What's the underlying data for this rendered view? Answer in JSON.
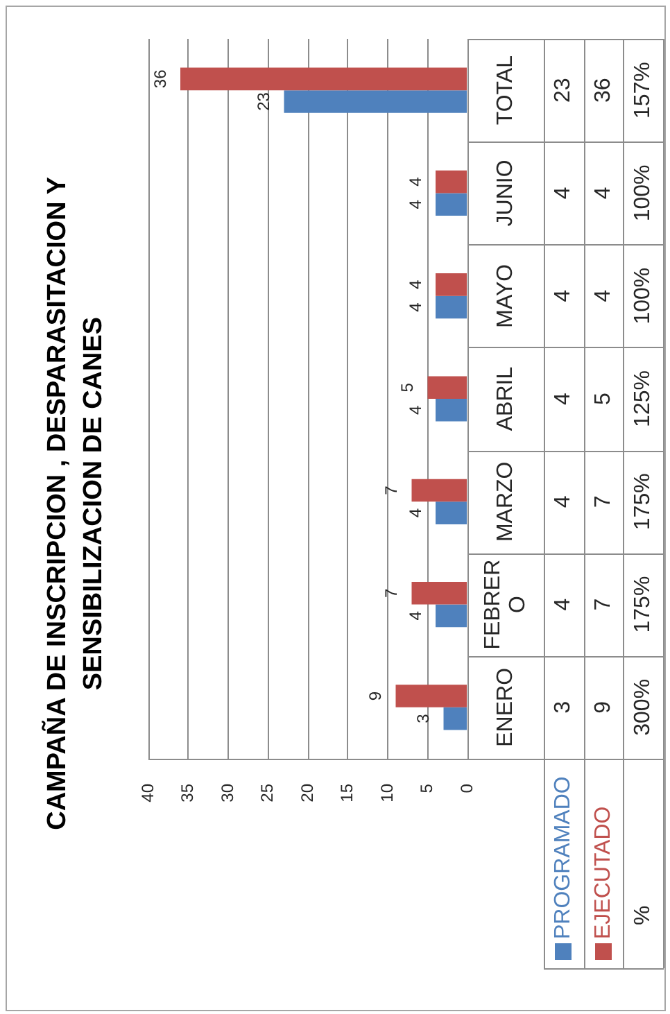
{
  "chart_data": {
    "type": "bar",
    "orientation": "horizontal",
    "title": "CAMPAÑA DE INSCRIPCION , DESPARASITACION Y SENSIBILIZACION DE CANES",
    "categories": [
      "TOTAL",
      "JUNIO",
      "MAYO",
      "ABRIL",
      "MARZO",
      "FEBRERO",
      "ENERO"
    ],
    "series": [
      {
        "name": "PROGRAMADO",
        "color": "#4f81bd",
        "values": [
          23,
          4,
          4,
          4,
          4,
          4,
          3
        ]
      },
      {
        "name": "EJECUTADO",
        "color": "#c0504d",
        "values": [
          36,
          4,
          4,
          5,
          7,
          7,
          9
        ]
      }
    ],
    "xlim": [
      40,
      0
    ],
    "xticks": [
      0,
      5,
      10,
      15,
      20,
      25,
      30,
      35,
      40
    ],
    "grid": "x",
    "legend": "bottom right",
    "data_labels": true,
    "annotations": [
      "23",
      "4",
      "4",
      "4",
      "4",
      "4",
      "3",
      "36",
      "4",
      "4",
      "5",
      "7",
      "7",
      "9",
      "%",
      "157%",
      "100%",
      "100%",
      "125%",
      "175%",
      "175%",
      "300%"
    ]
  }
}
